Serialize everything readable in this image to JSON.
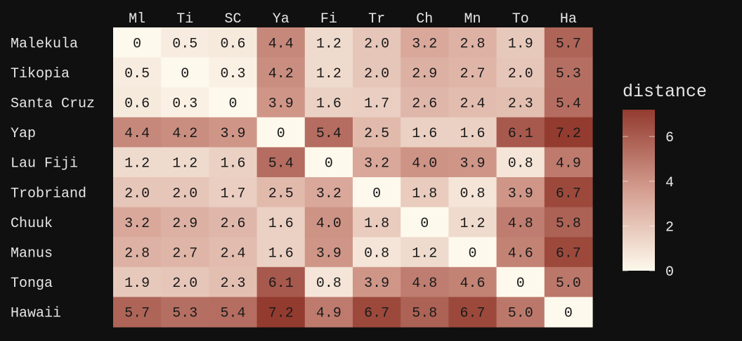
{
  "chart_data": {
    "type": "heatmap",
    "title": "",
    "xlabel": "",
    "ylabel": "",
    "columns": [
      "Ml",
      "Ti",
      "SC",
      "Ya",
      "Fi",
      "Tr",
      "Ch",
      "Mn",
      "To",
      "Ha"
    ],
    "rows": [
      "Malekula",
      "Tikopia",
      "Santa Cruz",
      "Yap",
      "Lau Fiji",
      "Trobriand",
      "Chuuk",
      "Manus",
      "Tonga",
      "Hawaii"
    ],
    "values": [
      [
        "0",
        "0.5",
        "0.6",
        "4.4",
        "1.2",
        "2.0",
        "3.2",
        "2.8",
        "1.9",
        "5.7"
      ],
      [
        "0.5",
        "0",
        "0.3",
        "4.2",
        "1.2",
        "2.0",
        "2.9",
        "2.7",
        "2.0",
        "5.3"
      ],
      [
        "0.6",
        "0.3",
        "0",
        "3.9",
        "1.6",
        "1.7",
        "2.6",
        "2.4",
        "2.3",
        "5.4"
      ],
      [
        "4.4",
        "4.2",
        "3.9",
        "0",
        "5.4",
        "2.5",
        "1.6",
        "1.6",
        "6.1",
        "7.2"
      ],
      [
        "1.2",
        "1.2",
        "1.6",
        "5.4",
        "0",
        "3.2",
        "4.0",
        "3.9",
        "0.8",
        "4.9"
      ],
      [
        "2.0",
        "2.0",
        "1.7",
        "2.5",
        "3.2",
        "0",
        "1.8",
        "0.8",
        "3.9",
        "6.7"
      ],
      [
        "3.2",
        "2.9",
        "2.6",
        "1.6",
        "4.0",
        "1.8",
        "0",
        "1.2",
        "4.8",
        "5.8"
      ],
      [
        "2.8",
        "2.7",
        "2.4",
        "1.6",
        "3.9",
        "0.8",
        "1.2",
        "0",
        "4.6",
        "6.7"
      ],
      [
        "1.9",
        "2.0",
        "2.3",
        "6.1",
        "0.8",
        "3.9",
        "4.8",
        "4.6",
        "0",
        "5.0"
      ],
      [
        "5.7",
        "5.3",
        "5.4",
        "7.2",
        "4.9",
        "6.7",
        "5.8",
        "6.7",
        "5.0",
        "0"
      ]
    ],
    "colorbar": {
      "title": "distance",
      "ticks": [
        "0",
        "2",
        "4",
        "6"
      ],
      "range": [
        0,
        7.2
      ]
    },
    "colors": {
      "low": "#fdf9ec",
      "mid": "#d49e90",
      "high": "#933b2f",
      "background": "#101010",
      "text": "#e6e6e6",
      "cell_text": "#1a1a1a"
    }
  }
}
